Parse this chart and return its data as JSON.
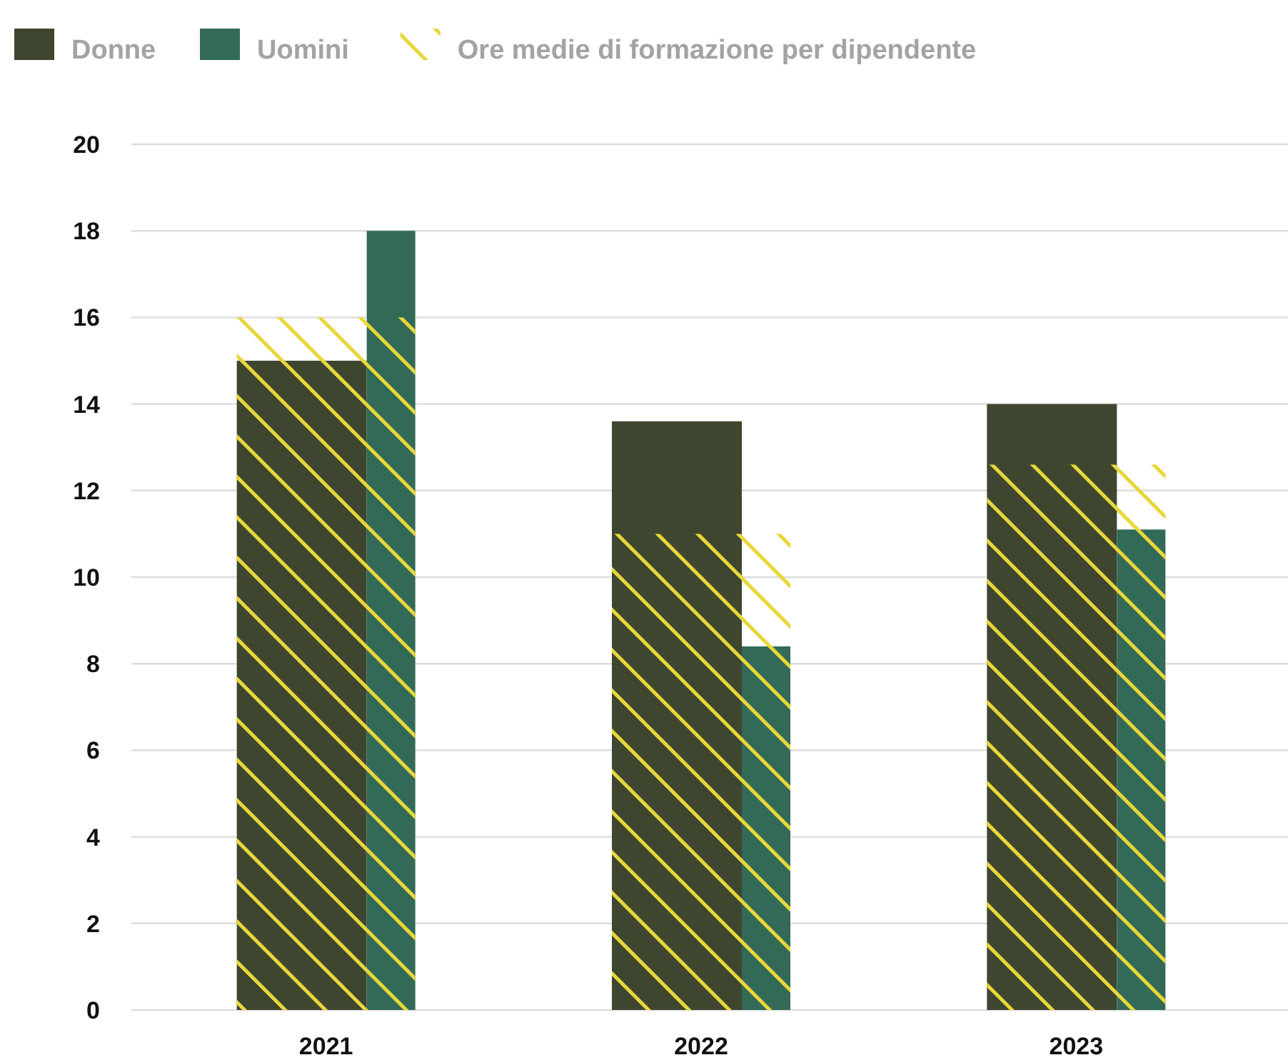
{
  "chart_data": {
    "type": "bar",
    "categories": [
      "2021",
      "2022",
      "2023"
    ],
    "series": [
      {
        "name": "Donne",
        "color": "#3e4630",
        "values": [
          15,
          13.6,
          14
        ]
      },
      {
        "name": "Uomini",
        "color": "#336a57",
        "values": [
          18,
          8.4,
          11.1
        ]
      },
      {
        "name": "Ore medie di formazione per dipendente",
        "color": "#e8d73a",
        "values": [
          16,
          11,
          12.6
        ]
      }
    ],
    "ylim": [
      0,
      20
    ],
    "yticks": [
      0,
      2,
      4,
      6,
      8,
      10,
      12,
      14,
      16,
      18,
      20
    ],
    "grid": "y",
    "legend": "top left"
  }
}
